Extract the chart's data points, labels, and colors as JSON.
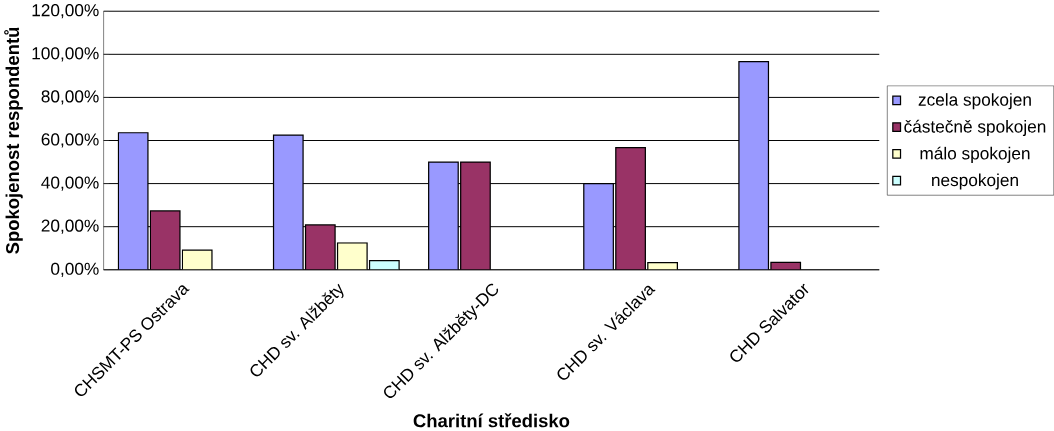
{
  "chart_data": {
    "type": "bar",
    "xlabel": "Charitní středisko",
    "ylabel": "Spokojenost respondentů",
    "categories": [
      "CHSMT-PS Ostrava",
      "CHD sv. Alžběty",
      "CHD sv. Alžběty-DC",
      "CHD sv. Václava",
      "CHD Salvator"
    ],
    "series": [
      {
        "name": "zcela spokojen",
        "color": "#9999ff",
        "values": [
          63.6,
          62.5,
          50,
          40,
          96.6
        ]
      },
      {
        "name": "částečně spokojen",
        "color": "#993366",
        "values": [
          27.3,
          20.8,
          50,
          56.7,
          3.4
        ]
      },
      {
        "name": "málo spokojen",
        "color": "#ffffcc",
        "values": [
          9.1,
          12.5,
          null,
          3.3,
          null
        ]
      },
      {
        "name": "nespokojen",
        "color": "#ccffff",
        "values": [
          null,
          4.2,
          null,
          null,
          null
        ]
      }
    ],
    "ylim": [
      0,
      120
    ],
    "yticks": [
      {
        "value": 0,
        "label": "0,00%"
      },
      {
        "value": 20,
        "label": "20,00%"
      },
      {
        "value": 40,
        "label": "40,00%"
      },
      {
        "value": 60,
        "label": "60,00%"
      },
      {
        "value": 80,
        "label": "80,00%"
      },
      {
        "value": 100,
        "label": "100,00%"
      },
      {
        "value": 120,
        "label": "120,00%"
      }
    ],
    "grid": "y",
    "legend": "right"
  }
}
